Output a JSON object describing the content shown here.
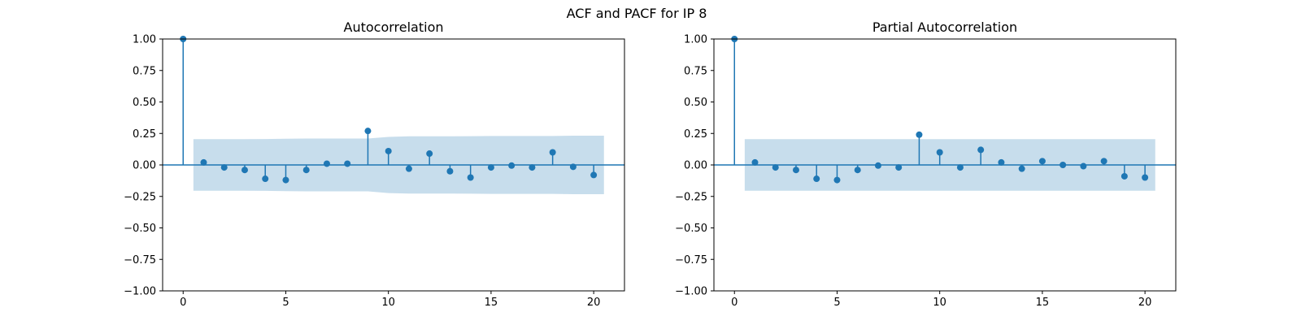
{
  "figure": {
    "suptitle": "ACF and PACF for IP 8"
  },
  "colors": {
    "series": "#1f77b4",
    "band": "#1f77b4",
    "axes": "#000000"
  },
  "chart_data": [
    {
      "type": "stem",
      "title": "Autocorrelation",
      "xlabel": "",
      "ylabel": "",
      "xlim": [
        -1,
        21.5
      ],
      "ylim": [
        -1,
        1
      ],
      "xticks": [
        0,
        5,
        10,
        15,
        20
      ],
      "xtick_labels": [
        "0",
        "5",
        "10",
        "15",
        "20"
      ],
      "yticks": [
        -1,
        -0.75,
        -0.5,
        -0.25,
        0,
        0.25,
        0.5,
        0.75,
        1
      ],
      "ytick_labels": [
        "−1.00",
        "−0.75",
        "−0.50",
        "−0.25",
        "0.00",
        "0.25",
        "0.50",
        "0.75",
        "1.00"
      ],
      "x": [
        0,
        1,
        2,
        3,
        4,
        5,
        6,
        7,
        8,
        9,
        10,
        11,
        12,
        13,
        14,
        15,
        16,
        17,
        18,
        19,
        20
      ],
      "values": [
        1.0,
        0.02,
        -0.02,
        -0.04,
        -0.11,
        -0.12,
        -0.04,
        0.01,
        0.01,
        0.27,
        0.11,
        -0.03,
        0.09,
        -0.05,
        -0.1,
        -0.02,
        -0.005,
        -0.02,
        0.1,
        -0.015,
        -0.08
      ],
      "confidence_band": {
        "x": [
          0.5,
          1,
          2,
          3,
          4,
          5,
          6,
          7,
          8,
          9,
          10,
          11,
          12,
          13,
          14,
          15,
          16,
          17,
          18,
          19,
          20,
          20.5
        ],
        "upper": [
          0.205,
          0.205,
          0.205,
          0.205,
          0.206,
          0.208,
          0.21,
          0.21,
          0.21,
          0.21,
          0.223,
          0.227,
          0.227,
          0.227,
          0.228,
          0.23,
          0.23,
          0.23,
          0.23,
          0.232,
          0.232,
          0.232
        ]
      },
      "grid": false,
      "legend": "none"
    },
    {
      "type": "stem",
      "title": "Partial Autocorrelation",
      "xlabel": "",
      "ylabel": "",
      "xlim": [
        -1,
        21.5
      ],
      "ylim": [
        -1,
        1
      ],
      "xticks": [
        0,
        5,
        10,
        15,
        20
      ],
      "xtick_labels": [
        "0",
        "5",
        "10",
        "15",
        "20"
      ],
      "yticks": [
        -1,
        -0.75,
        -0.5,
        -0.25,
        0,
        0.25,
        0.5,
        0.75,
        1
      ],
      "ytick_labels": [
        "−1.00",
        "−0.75",
        "−0.50",
        "−0.25",
        "0.00",
        "0.25",
        "0.50",
        "0.75",
        "1.00"
      ],
      "x": [
        0,
        1,
        2,
        3,
        4,
        5,
        6,
        7,
        8,
        9,
        10,
        11,
        12,
        13,
        14,
        15,
        16,
        17,
        18,
        19,
        20
      ],
      "values": [
        1.0,
        0.02,
        -0.02,
        -0.04,
        -0.11,
        -0.12,
        -0.04,
        -0.005,
        -0.02,
        0.24,
        0.1,
        -0.02,
        0.12,
        0.02,
        -0.03,
        0.03,
        0.0,
        -0.01,
        0.03,
        -0.09,
        -0.1
      ],
      "confidence_band": {
        "x": [
          0.5,
          20.5
        ],
        "upper": [
          0.205,
          0.205
        ]
      },
      "grid": false,
      "legend": "none"
    }
  ]
}
